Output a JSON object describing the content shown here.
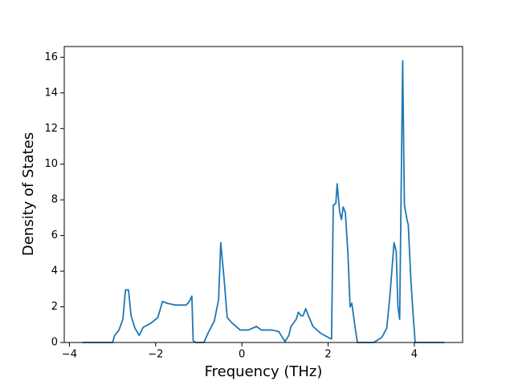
{
  "chart_data": {
    "type": "line",
    "xlabel": "Frequency (THz)",
    "ylabel": "Density of States",
    "xlim": [
      -4.12,
      5.12
    ],
    "ylim": [
      0,
      16.6
    ],
    "xticks": [
      {
        "value": -4,
        "label": "−4"
      },
      {
        "value": -2,
        "label": "−2"
      },
      0,
      2,
      4
    ],
    "yticks": [
      0,
      2,
      4,
      6,
      8,
      10,
      12,
      14,
      16
    ],
    "series": [
      {
        "color": "#1f77b4",
        "x": [
          -3.7,
          -3.0,
          -2.95,
          -2.85,
          -2.76,
          -2.7,
          -2.63,
          -2.57,
          -2.48,
          -2.38,
          -2.29,
          -2.1,
          -1.95,
          -1.84,
          -1.73,
          -1.54,
          -1.29,
          -1.22,
          -1.16,
          -1.13,
          -1.07,
          -0.88,
          -0.79,
          -0.64,
          -0.54,
          -0.49,
          -0.41,
          -0.34,
          -0.23,
          -0.04,
          0.15,
          0.34,
          0.45,
          0.71,
          0.86,
          1.0,
          1.09,
          1.14,
          1.26,
          1.31,
          1.37,
          1.42,
          1.48,
          1.56,
          1.65,
          1.84,
          2.03,
          2.08,
          2.12,
          2.18,
          2.21,
          2.27,
          2.31,
          2.35,
          2.4,
          2.46,
          2.51,
          2.55,
          2.63,
          2.68,
          3.06,
          3.25,
          3.36,
          3.43,
          3.53,
          3.58,
          3.62,
          3.66,
          3.73,
          3.77,
          3.83,
          3.86,
          3.92,
          3.98,
          4.02,
          4.7
        ],
        "values": [
          0,
          0,
          0.4,
          0.7,
          1.3,
          2.95,
          2.95,
          1.5,
          0.8,
          0.4,
          0.85,
          1.1,
          1.4,
          2.3,
          2.2,
          2.1,
          2.1,
          2.3,
          2.6,
          0.1,
          0,
          0,
          0.5,
          1.2,
          2.4,
          5.6,
          3.5,
          1.4,
          1.1,
          0.7,
          0.7,
          0.9,
          0.7,
          0.7,
          0.6,
          0.05,
          0.4,
          0.9,
          1.3,
          1.7,
          1.5,
          1.5,
          1.9,
          1.4,
          0.9,
          0.5,
          0.25,
          0.2,
          7.7,
          7.8,
          8.9,
          7.3,
          6.9,
          7.6,
          7.3,
          5.0,
          2.0,
          2.2,
          0.8,
          0,
          0,
          0.3,
          0.8,
          2.5,
          5.6,
          5.1,
          2.0,
          1.3,
          15.8,
          7.7,
          6.9,
          6.6,
          3.5,
          1.3,
          0,
          0
        ]
      }
    ]
  }
}
